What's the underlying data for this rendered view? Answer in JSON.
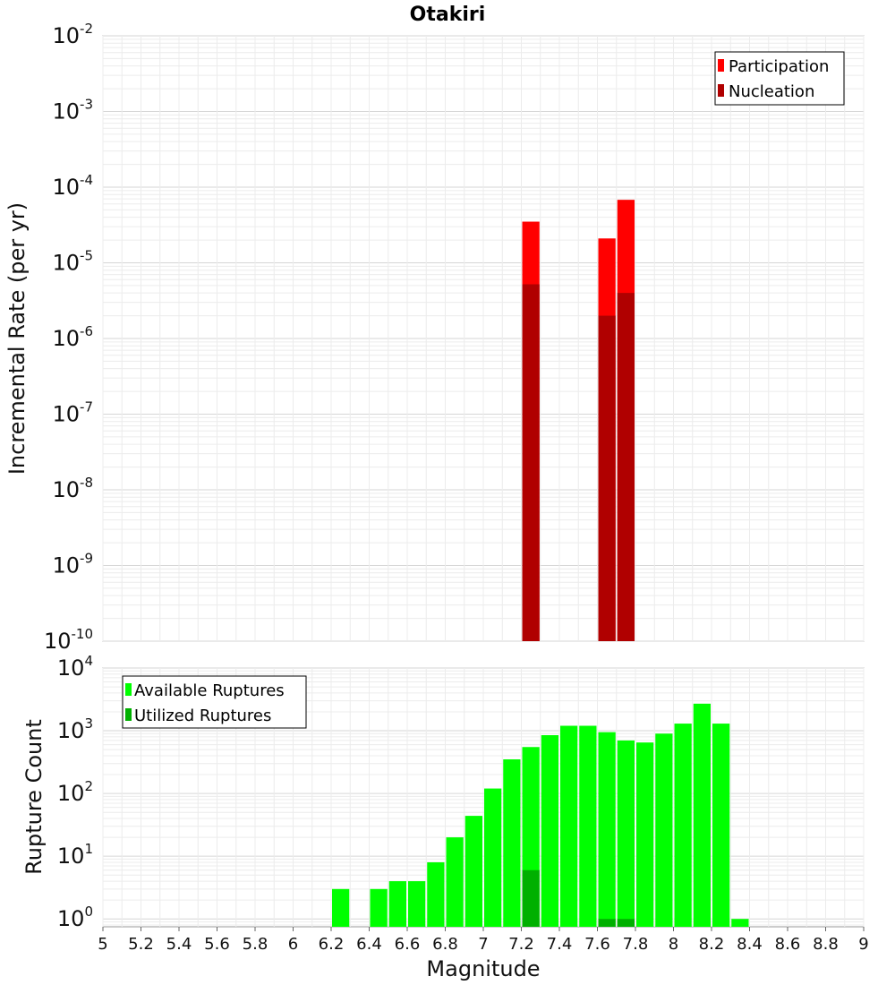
{
  "chart_data": [
    {
      "type": "bar",
      "title": "Otakiri",
      "ylabel": "Incremental Rate (per yr)",
      "xlabel": "",
      "yscale": "log",
      "ylim": [
        1e-10,
        0.01
      ],
      "xlim": [
        5,
        9
      ],
      "y_tick_labels": [
        {
          "base": "10",
          "exp": "-10"
        },
        {
          "base": "10",
          "exp": "-9"
        },
        {
          "base": "10",
          "exp": "-8"
        },
        {
          "base": "10",
          "exp": "-7"
        },
        {
          "base": "10",
          "exp": "-6"
        },
        {
          "base": "10",
          "exp": "-5"
        },
        {
          "base": "10",
          "exp": "-4"
        },
        {
          "base": "10",
          "exp": "-3"
        },
        {
          "base": "10",
          "exp": "-2"
        }
      ],
      "legend": "top-right",
      "grid": true,
      "bin_width": 0.1,
      "series": [
        {
          "name": "Participation",
          "color": "#ff0000",
          "x": [
            7.25,
            7.65,
            7.75
          ],
          "values": [
            3.5e-05,
            2.1e-05,
            6.8e-05
          ]
        },
        {
          "name": "Nucleation",
          "color": "#b00000",
          "x": [
            7.25,
            7.65,
            7.75
          ],
          "values": [
            5.2e-06,
            2e-06,
            4e-06
          ]
        }
      ]
    },
    {
      "type": "bar",
      "title": "",
      "ylabel": "Rupture Count",
      "xlabel": "Magnitude",
      "yscale": "log",
      "ylim": [
        0.75,
        10000
      ],
      "xlim": [
        5,
        9
      ],
      "y_tick_labels": [
        {
          "base": "10",
          "exp": "0"
        },
        {
          "base": "10",
          "exp": "1"
        },
        {
          "base": "10",
          "exp": "2"
        },
        {
          "base": "10",
          "exp": "3"
        },
        {
          "base": "10",
          "exp": "4"
        }
      ],
      "x_tick_labels": [
        "5",
        "5.2",
        "5.4",
        "5.6",
        "5.8",
        "6",
        "6.2",
        "6.4",
        "6.6",
        "6.8",
        "7",
        "7.2",
        "7.4",
        "7.6",
        "7.8",
        "8",
        "8.2",
        "8.4",
        "8.6",
        "8.8",
        "9"
      ],
      "legend": "top-left",
      "grid": true,
      "bin_width": 0.1,
      "series": [
        {
          "name": "Available Ruptures",
          "color": "#00ff00",
          "x": [
            6.25,
            6.45,
            6.55,
            6.65,
            6.75,
            6.85,
            6.95,
            7.05,
            7.15,
            7.25,
            7.35,
            7.45,
            7.55,
            7.65,
            7.75,
            7.85,
            7.95,
            8.05,
            8.15,
            8.25,
            8.35
          ],
          "values": [
            3,
            3,
            4,
            4,
            8,
            20,
            44,
            120,
            350,
            550,
            850,
            1200,
            1200,
            950,
            700,
            650,
            900,
            1300,
            2700,
            1300,
            1
          ]
        },
        {
          "name": "Utilized Ruptures",
          "color": "#00b000",
          "x": [
            7.25,
            7.65,
            7.75
          ],
          "values": [
            6,
            1,
            1
          ]
        }
      ]
    }
  ]
}
